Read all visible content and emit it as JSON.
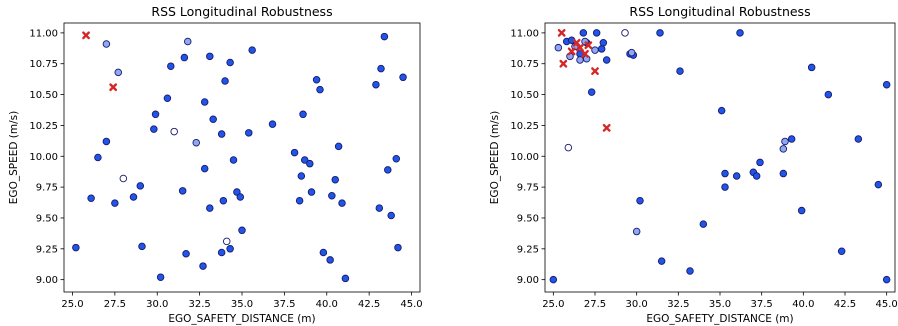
{
  "chart_data": [
    {
      "type": "scatter",
      "title": "RSS Longitudinal Robustness",
      "xlabel": "EGO_SAFETY_DISTANCE (m)",
      "ylabel": "EGO_SPEED (m/s)",
      "xlim": [
        24.5,
        45.5
      ],
      "ylim": [
        8.9,
        11.08
      ],
      "xticks": [
        "25.0",
        "27.5",
        "30.0",
        "32.5",
        "35.0",
        "37.5",
        "40.0",
        "42.5",
        "45.0"
      ],
      "yticks": [
        "9.00",
        "9.25",
        "9.50",
        "9.75",
        "10.00",
        "10.25",
        "10.50",
        "10.75",
        "11.00"
      ],
      "grid": false,
      "colors": {
        "pass": "#1f55e8",
        "marginal": "#8fa8f5",
        "weak": "#ffffff",
        "fail": "#d62728"
      },
      "series": [
        {
          "kind": "pass",
          "marker": "circle",
          "points": [
            [
              25.2,
              9.26
            ],
            [
              26.1,
              9.66
            ],
            [
              26.5,
              9.99
            ],
            [
              27.0,
              10.12
            ],
            [
              27.5,
              9.62
            ],
            [
              28.6,
              9.67
            ],
            [
              29.0,
              9.76
            ],
            [
              29.1,
              9.27
            ],
            [
              29.8,
              10.22
            ],
            [
              29.9,
              10.34
            ],
            [
              30.2,
              9.02
            ],
            [
              30.6,
              10.47
            ],
            [
              30.8,
              10.73
            ],
            [
              31.5,
              9.72
            ],
            [
              31.6,
              10.8
            ],
            [
              31.7,
              9.21
            ],
            [
              32.7,
              9.11
            ],
            [
              32.8,
              10.44
            ],
            [
              32.8,
              9.9
            ],
            [
              33.1,
              10.81
            ],
            [
              33.1,
              9.58
            ],
            [
              33.3,
              10.3
            ],
            [
              33.8,
              10.18
            ],
            [
              33.8,
              9.22
            ],
            [
              33.9,
              9.64
            ],
            [
              34.0,
              10.61
            ],
            [
              34.3,
              10.76
            ],
            [
              34.3,
              9.25
            ],
            [
              34.5,
              9.97
            ],
            [
              34.7,
              9.71
            ],
            [
              34.9,
              9.67
            ],
            [
              35.0,
              9.4
            ],
            [
              35.4,
              10.19
            ],
            [
              35.6,
              10.86
            ],
            [
              36.8,
              10.26
            ],
            [
              38.1,
              10.03
            ],
            [
              38.4,
              9.64
            ],
            [
              38.5,
              9.84
            ],
            [
              38.6,
              10.34
            ],
            [
              38.7,
              9.97
            ],
            [
              39.0,
              9.94
            ],
            [
              39.1,
              9.71
            ],
            [
              39.4,
              10.62
            ],
            [
              39.6,
              10.54
            ],
            [
              39.8,
              9.22
            ],
            [
              40.2,
              9.16
            ],
            [
              40.3,
              9.68
            ],
            [
              40.5,
              9.81
            ],
            [
              40.7,
              10.08
            ],
            [
              40.9,
              9.62
            ],
            [
              41.1,
              9.01
            ],
            [
              42.9,
              10.58
            ],
            [
              43.1,
              9.58
            ],
            [
              43.2,
              10.71
            ],
            [
              43.4,
              10.97
            ],
            [
              43.6,
              9.89
            ],
            [
              43.8,
              9.52
            ],
            [
              44.1,
              9.98
            ],
            [
              44.2,
              9.26
            ],
            [
              44.5,
              10.64
            ]
          ]
        },
        {
          "kind": "marginal",
          "marker": "circle",
          "points": [
            [
              27.0,
              10.91
            ],
            [
              27.7,
              10.68
            ],
            [
              31.8,
              10.93
            ],
            [
              32.3,
              10.11
            ]
          ]
        },
        {
          "kind": "weak",
          "marker": "circle",
          "points": [
            [
              28.0,
              9.82
            ],
            [
              31.0,
              10.2
            ],
            [
              34.1,
              9.31
            ]
          ]
        },
        {
          "kind": "fail",
          "marker": "x",
          "points": [
            [
              25.8,
              10.98
            ],
            [
              27.4,
              10.56
            ]
          ]
        }
      ]
    },
    {
      "type": "scatter",
      "title": "RSS Longitudinal Robustness",
      "xlabel": "EGO_SAFETY_DISTANCE (m)",
      "ylabel": "EGO_SPEED (m/s)",
      "xlim": [
        24.5,
        45.5
      ],
      "ylim": [
        8.9,
        11.08
      ],
      "xticks": [
        "25.0",
        "27.5",
        "30.0",
        "32.5",
        "35.0",
        "37.5",
        "40.0",
        "42.5",
        "45.0"
      ],
      "yticks": [
        "9.00",
        "9.25",
        "9.50",
        "9.75",
        "10.00",
        "10.25",
        "10.50",
        "10.75",
        "11.00"
      ],
      "grid": false,
      "colors": {
        "pass": "#1f55e8",
        "marginal": "#8fa8f5",
        "weak": "#ffffff",
        "fail": "#d62728"
      },
      "series": [
        {
          "kind": "pass",
          "marker": "circle",
          "points": [
            [
              25.0,
              9.0
            ],
            [
              25.8,
              10.93
            ],
            [
              26.1,
              10.94
            ],
            [
              26.6,
              10.83
            ],
            [
              26.8,
              11.0
            ],
            [
              27.0,
              10.92
            ],
            [
              27.3,
              10.52
            ],
            [
              27.6,
              11.0
            ],
            [
              27.9,
              10.87
            ],
            [
              28.0,
              10.92
            ],
            [
              28.2,
              10.78
            ],
            [
              29.6,
              10.83
            ],
            [
              29.8,
              10.82
            ],
            [
              30.2,
              9.64
            ],
            [
              31.4,
              11.0
            ],
            [
              31.5,
              9.15
            ],
            [
              32.6,
              10.69
            ],
            [
              33.2,
              9.07
            ],
            [
              34.0,
              9.45
            ],
            [
              35.1,
              10.37
            ],
            [
              35.3,
              9.86
            ],
            [
              35.3,
              9.75
            ],
            [
              36.0,
              9.84
            ],
            [
              36.2,
              11.0
            ],
            [
              37.0,
              9.87
            ],
            [
              37.2,
              9.84
            ],
            [
              37.4,
              9.95
            ],
            [
              38.8,
              9.86
            ],
            [
              39.3,
              10.14
            ],
            [
              39.9,
              9.56
            ],
            [
              40.5,
              10.72
            ],
            [
              41.5,
              10.5
            ],
            [
              42.3,
              9.23
            ],
            [
              43.3,
              10.14
            ],
            [
              44.5,
              9.77
            ],
            [
              45.0,
              10.58
            ],
            [
              45.0,
              9.0
            ]
          ]
        },
        {
          "kind": "marginal",
          "marker": "circle",
          "points": [
            [
              25.3,
              10.88
            ],
            [
              26.0,
              10.81
            ],
            [
              26.3,
              10.89
            ],
            [
              26.6,
              10.78
            ],
            [
              26.9,
              10.93
            ],
            [
              27.0,
              10.79
            ],
            [
              27.5,
              10.86
            ],
            [
              29.7,
              10.84
            ],
            [
              30.0,
              9.39
            ],
            [
              38.8,
              10.06
            ],
            [
              38.9,
              10.12
            ]
          ]
        },
        {
          "kind": "weak",
          "marker": "circle",
          "points": [
            [
              25.9,
              10.07
            ],
            [
              29.3,
              11.0
            ]
          ]
        },
        {
          "kind": "fail",
          "marker": "x",
          "points": [
            [
              25.5,
              11.0
            ],
            [
              25.6,
              10.75
            ],
            [
              26.1,
              10.85
            ],
            [
              26.4,
              10.92
            ],
            [
              26.6,
              10.88
            ],
            [
              26.9,
              10.83
            ],
            [
              27.1,
              10.9
            ],
            [
              27.5,
              10.69
            ],
            [
              28.2,
              10.23
            ]
          ]
        }
      ]
    }
  ]
}
